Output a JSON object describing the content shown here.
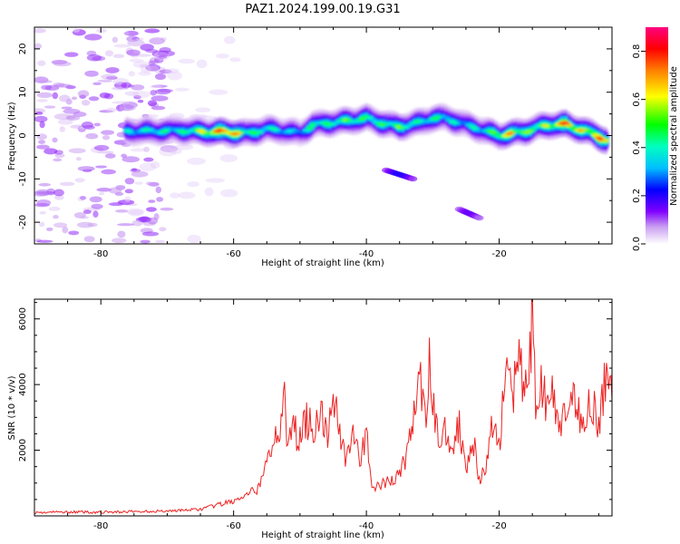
{
  "figure": {
    "title": "PAZ1.2024.199.00.19.G31"
  },
  "chart_data": [
    {
      "type": "heatmap",
      "title": "PAZ1.2024.199.00.19.G31",
      "xlabel": "Height of straight line (km)",
      "ylabel": "Frequency (Hz)",
      "xlim": [
        -90,
        -3
      ],
      "ylim": [
        -25,
        25
      ],
      "xticks": [
        -80,
        -60,
        -40,
        -20
      ],
      "yticks": [
        -20,
        -10,
        0,
        10,
        20
      ],
      "colorbar": {
        "label": "Normalized spectral amplitude",
        "range": [
          0.0,
          0.9
        ],
        "ticks": [
          0.0,
          0.2,
          0.4,
          0.6,
          0.8
        ],
        "colormap": [
          "#ffffff",
          "#c89cf0",
          "#8000ff",
          "#0000ff",
          "#00bfff",
          "#00ffc0",
          "#00ff00",
          "#ffff00",
          "#ff8000",
          "#ff0000",
          "#ff0080"
        ]
      },
      "ridge": {
        "x": [
          -76,
          -72,
          -68,
          -64,
          -61,
          -58,
          -55,
          -52,
          -50,
          -48,
          -45,
          -42,
          -40,
          -38,
          -35,
          -32,
          -30,
          -28,
          -25,
          -22,
          -20,
          -18,
          -16,
          -14,
          -12,
          -10,
          -8,
          -6,
          -4
        ],
        "y": [
          1.0,
          1.0,
          1.2,
          0.8,
          0.8,
          0.5,
          1.5,
          1.0,
          0.5,
          2.5,
          3.0,
          3.5,
          4.0,
          3.0,
          2.0,
          3.0,
          4.0,
          4.0,
          2.5,
          1.0,
          0.0,
          0.5,
          1.0,
          2.0,
          2.5,
          2.5,
          1.5,
          0.5,
          -1.0
        ],
        "amplitude": [
          0.45,
          0.5,
          0.5,
          0.7,
          0.9,
          0.6,
          0.5,
          0.45,
          0.4,
          0.55,
          0.55,
          0.6,
          0.55,
          0.55,
          0.6,
          0.5,
          0.55,
          0.5,
          0.45,
          0.5,
          0.65,
          0.75,
          0.6,
          0.6,
          0.7,
          0.85,
          0.7,
          0.75,
          0.8
        ]
      },
      "secondary_features": [
        {
          "x": [
            -37,
            -33
          ],
          "y": [
            -8,
            -10
          ],
          "amplitude": 0.25
        },
        {
          "x": [
            -26,
            -23
          ],
          "y": [
            -17,
            -19
          ],
          "amplitude": 0.2
        }
      ]
    },
    {
      "type": "line",
      "xlabel": "Height of straight line (km)",
      "ylabel": "SNR (10 * v/v)",
      "xlim": [
        -90,
        -3
      ],
      "ylim": [
        0,
        6600
      ],
      "xticks": [
        -80,
        -60,
        -40,
        -20
      ],
      "yticks": [
        2000,
        4000,
        6000
      ],
      "series": [
        {
          "color": "#ee2222",
          "x": [
            -90,
            -85,
            -80,
            -75,
            -70,
            -65,
            -62,
            -60,
            -58,
            -56,
            -55,
            -54,
            -53,
            -52.5,
            -52,
            -51,
            -50,
            -49,
            -48,
            -47,
            -46,
            -45,
            -44,
            -43,
            -42,
            -41,
            -40,
            -39,
            -38,
            -37,
            -36,
            -35,
            -34,
            -33,
            -32,
            -31,
            -30.5,
            -30,
            -29,
            -28,
            -27,
            -26,
            -25,
            -24,
            -23,
            -22,
            -21,
            -20,
            -19.5,
            -19,
            -18,
            -17,
            -16,
            -15.2,
            -15,
            -14.5,
            -14,
            -13,
            -12,
            -11,
            -10,
            -9,
            -8,
            -7,
            -6,
            -5,
            -4,
            -3
          ],
          "y": [
            100,
            120,
            110,
            130,
            150,
            200,
            350,
            450,
            600,
            900,
            1600,
            2400,
            2900,
            4050,
            2000,
            2700,
            2300,
            3000,
            2600,
            3300,
            2300,
            3800,
            2500,
            1800,
            2700,
            1500,
            2500,
            800,
            900,
            1000,
            1100,
            1300,
            1800,
            2900,
            4200,
            2500,
            5000,
            3500,
            2200,
            2700,
            2000,
            2800,
            1500,
            2500,
            1000,
            1500,
            2800,
            2200,
            3200,
            4800,
            3600,
            4500,
            4000,
            4900,
            6500,
            3300,
            4100,
            3500,
            3600,
            2800,
            2900,
            3400,
            3200,
            3000,
            3600,
            2800,
            4100,
            3500
          ]
        }
      ]
    }
  ]
}
